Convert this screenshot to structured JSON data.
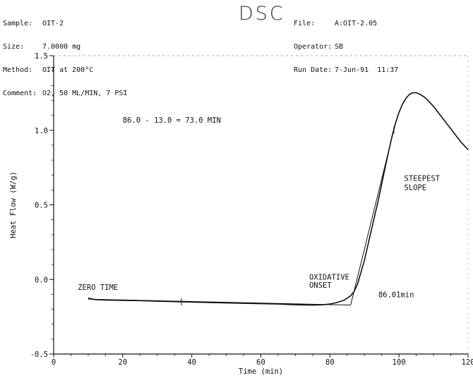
{
  "header": {
    "left": [
      {
        "key": "Sample:",
        "value": "OIT-2"
      },
      {
        "key": "Size:",
        "value": "7.0000 mg"
      },
      {
        "key": "Method:",
        "value": "OIT at 200°C"
      },
      {
        "key": "Comment:",
        "value": "O2, 50 ML/MIN, 7 PSI"
      }
    ],
    "title": "DSC",
    "right": [
      {
        "key": "File:",
        "value": "A:OIT-2.05"
      },
      {
        "key": "Operator:",
        "value": "SB"
      },
      {
        "key": "Run Date:",
        "value": "7-Jun-91  11:37"
      }
    ]
  },
  "chart_data": {
    "type": "line",
    "title": "DSC",
    "xlabel": "Time (min)",
    "ylabel": "Heat Flow (W/g)",
    "xlim": [
      0,
      120
    ],
    "ylim": [
      -0.5,
      1.5
    ],
    "xticks": [
      "0",
      "20",
      "40",
      "60",
      "80",
      "100",
      "120"
    ],
    "yticks": [
      "-0.5",
      "0.0",
      "0.5",
      "1.0",
      "1.5"
    ],
    "grid": false,
    "series": [
      {
        "x": [
          10,
          12,
          15,
          20,
          25,
          30,
          37,
          45,
          55,
          65,
          70,
          75,
          78,
          80,
          82,
          84,
          86,
          87,
          88,
          89,
          90,
          91,
          92,
          93,
          94,
          95,
          96,
          97,
          98,
          99,
          100,
          101,
          102,
          103,
          104,
          105,
          106,
          107,
          108,
          110,
          112,
          114,
          116,
          118,
          120
        ],
        "y": [
          -0.125,
          -0.135,
          -0.138,
          -0.14,
          -0.142,
          -0.146,
          -0.15,
          -0.155,
          -0.16,
          -0.165,
          -0.17,
          -0.172,
          -0.17,
          -0.165,
          -0.155,
          -0.14,
          -0.11,
          -0.08,
          -0.03,
          0.05,
          0.13,
          0.23,
          0.33,
          0.43,
          0.53,
          0.64,
          0.75,
          0.86,
          0.96,
          1.05,
          1.12,
          1.175,
          1.215,
          1.24,
          1.252,
          1.252,
          1.242,
          1.228,
          1.21,
          1.16,
          1.1,
          1.04,
          0.98,
          0.92,
          0.87
        ]
      }
    ],
    "baseline": {
      "x": [
        10,
        86
      ],
      "y": [
        -0.132,
        -0.172
      ]
    },
    "tangent": {
      "x": [
        86,
        99
      ],
      "y": [
        -0.172,
        1.05
      ]
    },
    "tick_marks": [
      {
        "x": 37,
        "y": -0.15
      },
      {
        "x": 98.5,
        "y": 1.0
      }
    ],
    "annotations": [
      {
        "text": "86.0 - 13.0 =  73.0 MIN",
        "x": 20,
        "y": 1.05
      },
      {
        "text": "ZERO TIME",
        "x": 7,
        "y": -0.07
      },
      {
        "text": "OXIDATIVE",
        "x": 74,
        "y": 0.0
      },
      {
        "text": "ONSET",
        "x": 74,
        "y": -0.055
      },
      {
        "text": "STEEPEST",
        "x": 101.5,
        "y": 0.66
      },
      {
        "text": "SLOPE",
        "x": 101.5,
        "y": 0.6
      },
      {
        "text": "86.01min",
        "x": 94,
        "y": -0.12
      }
    ]
  }
}
